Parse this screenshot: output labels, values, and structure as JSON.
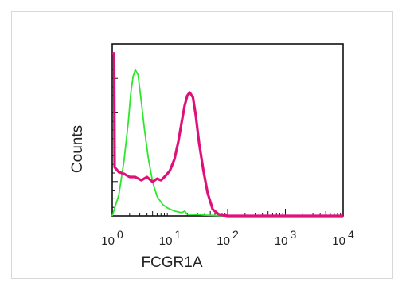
{
  "chart_data": {
    "type": "line",
    "title": "",
    "xlabel": "FCGR1A",
    "ylabel": "Counts",
    "x_scale": "log",
    "xlim": [
      1,
      10000
    ],
    "ylim": [
      0,
      100
    ],
    "y_ticks_labeled": false,
    "grid": false,
    "legend": "none",
    "x_ticks": [
      {
        "base": "10",
        "exp": "0",
        "value": 1
      },
      {
        "base": "10",
        "exp": "1",
        "value": 10
      },
      {
        "base": "10",
        "exp": "2",
        "value": 100
      },
      {
        "base": "10",
        "exp": "3",
        "value": 1000
      },
      {
        "base": "10",
        "exp": "4",
        "value": 10000
      }
    ],
    "series": [
      {
        "color": "#2ee62e",
        "points": [
          [
            1.0,
            0
          ],
          [
            1.3,
            13
          ],
          [
            1.6,
            34
          ],
          [
            1.9,
            58
          ],
          [
            2.1,
            76
          ],
          [
            2.3,
            86
          ],
          [
            2.5,
            90
          ],
          [
            2.8,
            87
          ],
          [
            3.2,
            70
          ],
          [
            3.6,
            54
          ],
          [
            4.2,
            36
          ],
          [
            5.0,
            21
          ],
          [
            6.0,
            12
          ],
          [
            7.5,
            7
          ],
          [
            9.0,
            5
          ],
          [
            12,
            3
          ],
          [
            16,
            2
          ],
          [
            18,
            3
          ],
          [
            20,
            1
          ],
          [
            25,
            1
          ],
          [
            40,
            0.5
          ],
          [
            100,
            0
          ],
          [
            800,
            0
          ],
          [
            3000,
            0
          ],
          [
            3800,
            0
          ]
        ]
      },
      {
        "color": "#e0107a",
        "points": [
          [
            1.0,
            100
          ],
          [
            1.08,
            100
          ],
          [
            1.1,
            30
          ],
          [
            1.3,
            27
          ],
          [
            1.6,
            26
          ],
          [
            2.0,
            24
          ],
          [
            2.5,
            24
          ],
          [
            3.2,
            22
          ],
          [
            4.0,
            24
          ],
          [
            5.0,
            21
          ],
          [
            6.0,
            23
          ],
          [
            7.0,
            22
          ],
          [
            8.0,
            24
          ],
          [
            9.0,
            26
          ],
          [
            10,
            28
          ],
          [
            12,
            35
          ],
          [
            14,
            46
          ],
          [
            16,
            58
          ],
          [
            18,
            68
          ],
          [
            20,
            74
          ],
          [
            22,
            76
          ],
          [
            25,
            73
          ],
          [
            28,
            62
          ],
          [
            32,
            45
          ],
          [
            38,
            28
          ],
          [
            45,
            14
          ],
          [
            55,
            4
          ],
          [
            70,
            1
          ],
          [
            100,
            0
          ],
          [
            1000,
            0
          ],
          [
            10000,
            0
          ]
        ]
      }
    ]
  }
}
